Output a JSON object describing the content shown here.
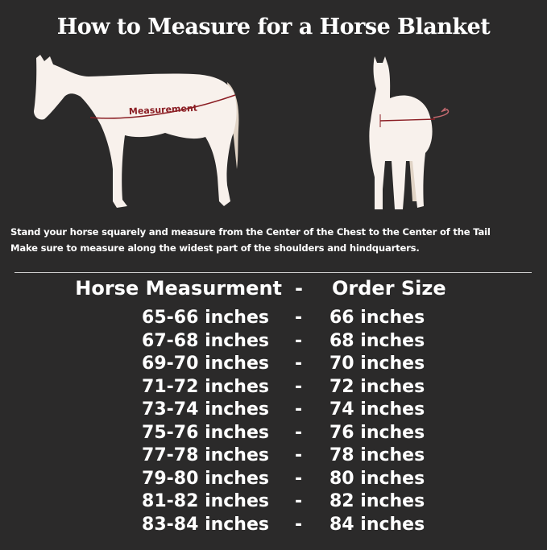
{
  "title": "How to Measure for a Horse Blanket",
  "diagram": {
    "measurement_label": "Measurement",
    "colors": {
      "background": "#2b2a2a",
      "horse": "#f8f1ec",
      "tail": "#e0d3c5",
      "measure_line": "#8b1e24"
    }
  },
  "instructions": [
    "Stand your horse squarely and measure from the Center of the Chest to the Center of the Tail",
    "Make sure to measure along the widest part of the shoulders and hindquarters."
  ],
  "table": {
    "headers": {
      "left": "Horse Measurment",
      "sep": "-",
      "right": "Order Size"
    },
    "rows": [
      {
        "measurement": "65-66 inches",
        "sep": "-",
        "size": "66 inches"
      },
      {
        "measurement": "67-68 inches",
        "sep": "-",
        "size": "68 inches"
      },
      {
        "measurement": "69-70 inches",
        "sep": "-",
        "size": "70 inches"
      },
      {
        "measurement": "71-72 inches",
        "sep": "-",
        "size": "72 inches"
      },
      {
        "measurement": "73-74 inches",
        "sep": "-",
        "size": "74 inches"
      },
      {
        "measurement": "75-76 inches",
        "sep": "-",
        "size": "76 inches"
      },
      {
        "measurement": "77-78 inches",
        "sep": "-",
        "size": "78 inches"
      },
      {
        "measurement": "79-80 inches",
        "sep": "-",
        "size": "80 inches"
      },
      {
        "measurement": "81-82 inches",
        "sep": "-",
        "size": "82 inches"
      },
      {
        "measurement": "83-84 inches",
        "sep": "-",
        "size": "84 inches"
      }
    ]
  }
}
